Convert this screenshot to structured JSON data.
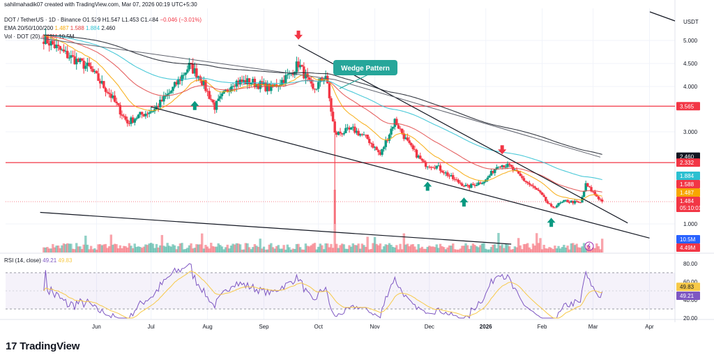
{
  "header": {
    "credit": "sahilmahadik07 created with TradingView.com, Mar 07, 2026 00:19 UTC+5:30",
    "symbol": "DOT / TetherUS · 1D · Binance",
    "ohlc": {
      "o": "O1.529",
      "h": "H1.547",
      "l": "L1.453",
      "c": "C1.484",
      "chg": "−0.046 (−3.01%)"
    },
    "ema_label": "EMA 20/50/100/200",
    "ema_values": [
      "1.487",
      "1.588",
      "1.884",
      "2.460"
    ],
    "vol_label": "Vol · DOT (20)",
    "vol_values": [
      "4.49M",
      "10.5M"
    ],
    "currency": "USDT"
  },
  "rsi": {
    "label": "RSI (14, close)",
    "value": "49.21",
    "ma_value": "49.83",
    "ticks": [
      "80.00",
      "60.00",
      "40.00",
      "20.00"
    ]
  },
  "footer": {
    "logo_text": "TradingView",
    "logo_mark": "17"
  },
  "annotation": {
    "wedge_label": "Wedge Pattern"
  },
  "price_tags": [
    {
      "text": "3.565",
      "color": "#f23645"
    },
    {
      "text": "2.460",
      "color": "#131722"
    },
    {
      "text": "2.332",
      "color": "#f23645"
    },
    {
      "text": "1.884",
      "color": "#2bc0d1"
    },
    {
      "text": "1.588",
      "color": "#f23645"
    },
    {
      "text": "1.487",
      "color": "#f7a600"
    },
    {
      "text": "1.484",
      "color": "#f23645"
    },
    {
      "text": "05:10:01",
      "color": "#f23645"
    },
    {
      "text": "10.5M",
      "color": "#2962ff"
    },
    {
      "text": "4.49M",
      "color": "#f23645"
    }
  ],
  "chart_data": {
    "type": "candlestick",
    "symbol": "DOT/USDT",
    "timeframe": "1D",
    "y_axis_ticks": [
      "5.000",
      "4.500",
      "4.000",
      "3.000",
      "1.000"
    ],
    "x_axis_ticks": [
      "Jun",
      "Jul",
      "Aug",
      "Sep",
      "Oct",
      "Nov",
      "Dec",
      "2026",
      "Feb",
      "Mar",
      "Apr"
    ],
    "ylim": [
      0.6,
      5.4
    ],
    "x_range_months": [
      "2025-05",
      "2026-04"
    ],
    "price_path": [
      [
        "2025-05-03",
        5.05
      ],
      [
        "2025-05-15",
        4.7
      ],
      [
        "2025-05-28",
        4.4
      ],
      [
        "2025-06-08",
        3.85
      ],
      [
        "2025-06-18",
        3.2
      ],
      [
        "2025-06-24",
        3.35
      ],
      [
        "2025-07-03",
        3.5
      ],
      [
        "2025-07-12",
        3.9
      ],
      [
        "2025-07-22",
        4.45
      ],
      [
        "2025-07-28",
        4.2
      ],
      [
        "2025-08-05",
        3.55
      ],
      [
        "2025-08-15",
        4.1
      ],
      [
        "2025-08-25",
        4.1
      ],
      [
        "2025-09-05",
        3.95
      ],
      [
        "2025-09-15",
        4.25
      ],
      [
        "2025-09-20",
        4.5
      ],
      [
        "2025-09-28",
        3.9
      ],
      [
        "2025-10-05",
        4.25
      ],
      [
        "2025-10-10",
        2.95
      ],
      [
        "2025-10-20",
        3.05
      ],
      [
        "2025-10-28",
        2.85
      ],
      [
        "2025-11-04",
        2.5
      ],
      [
        "2025-11-12",
        3.25
      ],
      [
        "2025-11-20",
        2.7
      ],
      [
        "2025-11-28",
        2.3
      ],
      [
        "2025-12-05",
        2.25
      ],
      [
        "2025-12-15",
        1.95
      ],
      [
        "2025-12-22",
        1.8
      ],
      [
        "2026-01-01",
        1.95
      ],
      [
        "2026-01-08",
        2.3
      ],
      [
        "2026-01-14",
        2.25
      ],
      [
        "2026-01-22",
        1.95
      ],
      [
        "2026-01-30",
        1.7
      ],
      [
        "2026-02-06",
        1.35
      ],
      [
        "2026-02-14",
        1.5
      ],
      [
        "2026-02-22",
        1.45
      ],
      [
        "2026-02-25",
        1.85
      ],
      [
        "2026-03-06",
        1.48
      ]
    ],
    "last_close": 1.484,
    "ema": {
      "ema20": 1.487,
      "ema50": 1.588,
      "ema100": 1.884,
      "ema200": 2.46
    },
    "horizontal_levels": [
      3.565,
      2.332
    ],
    "wedge_upper_line": [
      [
        "2025-09-20",
        4.9
      ],
      [
        "2026-03-20",
        1.02
      ]
    ],
    "wedge_lower_line": [
      [
        "2025-07-01",
        3.55
      ],
      [
        "2026-04-01",
        0.72
      ]
    ],
    "long_support_line": [
      [
        "2025-05-01",
        1.25
      ],
      [
        "2026-01-15",
        0.6
      ]
    ],
    "upper_trendline": [
      [
        "2025-05-01",
        5.05
      ],
      [
        "2025-10-10",
        4.15
      ],
      [
        "2026-03-05",
        2.45
      ]
    ],
    "volume": {
      "vol": "4.49M",
      "vol_ma": "10.5M"
    },
    "rsi": {
      "rsi": 49.21,
      "rsi_ma": 49.83,
      "bands": [
        70,
        30
      ],
      "range": [
        20,
        80
      ]
    },
    "annotations": [
      "Wedge Pattern"
    ],
    "arrows": {
      "up": [
        "2025-07-25",
        "2025-11-30",
        "2025-12-20",
        "2026-02-06"
      ],
      "down": [
        "2025-09-20",
        "2026-01-10"
      ]
    }
  }
}
